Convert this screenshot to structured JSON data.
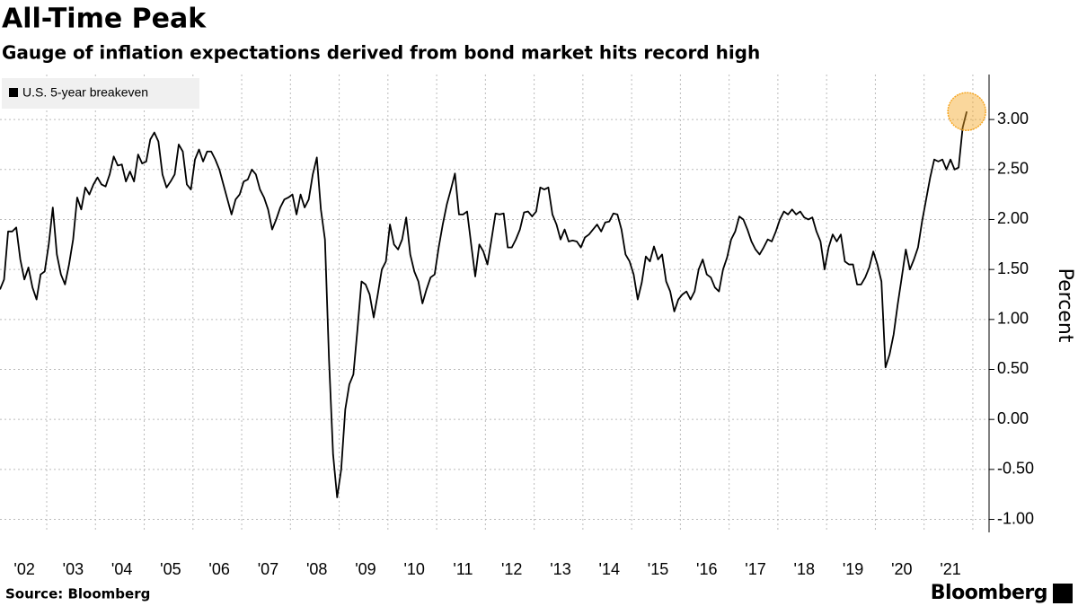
{
  "chart_data": {
    "type": "line",
    "title": "All-Time Peak",
    "subtitle": "Gauge of inflation expectations derived from bond market hits record high",
    "source": "Source: Bloomberg",
    "brand": "Bloomberg",
    "y_label": "Percent",
    "categories": [
      null,
      null,
      null,
      null,
      null,
      null,
      "'02",
      null,
      null,
      null,
      null,
      null,
      null,
      null,
      null,
      null,
      null,
      null,
      "'03",
      null,
      null,
      null,
      null,
      null,
      null,
      null,
      null,
      null,
      null,
      null,
      "'04",
      null,
      null,
      null,
      null,
      null,
      null,
      null,
      null,
      null,
      null,
      null,
      "'05",
      null,
      null,
      null,
      null,
      null,
      null,
      null,
      null,
      null,
      null,
      null,
      "'06",
      null,
      null,
      null,
      null,
      null,
      null,
      null,
      null,
      null,
      null,
      null,
      "'07",
      null,
      null,
      null,
      null,
      null,
      null,
      null,
      null,
      null,
      null,
      null,
      "'08",
      null,
      null,
      null,
      null,
      null,
      null,
      null,
      null,
      null,
      null,
      null,
      "'09",
      null,
      null,
      null,
      null,
      null,
      null,
      null,
      null,
      null,
      null,
      null,
      "'10",
      null,
      null,
      null,
      null,
      null,
      null,
      null,
      null,
      null,
      null,
      null,
      "'11",
      null,
      null,
      null,
      null,
      null,
      null,
      null,
      null,
      null,
      null,
      null,
      "'12",
      null,
      null,
      null,
      null,
      null,
      null,
      null,
      null,
      null,
      null,
      null,
      "'13",
      null,
      null,
      null,
      null,
      null,
      null,
      null,
      null,
      null,
      null,
      null,
      "'14",
      null,
      null,
      null,
      null,
      null,
      null,
      null,
      null,
      null,
      null,
      null,
      "'15",
      null,
      null,
      null,
      null,
      null,
      null,
      null,
      null,
      null,
      null,
      null,
      "'16",
      null,
      null,
      null,
      null,
      null,
      null,
      null,
      null,
      null,
      null,
      null,
      "'17",
      null,
      null,
      null,
      null,
      null,
      null,
      null,
      null,
      null,
      null,
      null,
      "'18",
      null,
      null,
      null,
      null,
      null,
      null,
      null,
      null,
      null,
      null,
      null,
      "'19",
      null,
      null,
      null,
      null,
      null,
      null,
      null,
      null,
      null,
      null,
      null,
      "'20",
      null,
      null,
      null,
      null,
      null,
      null,
      null,
      null,
      null,
      null,
      null,
      "'21",
      null,
      null,
      null,
      null
    ],
    "series": [
      {
        "name": "U.S. 5-year breakeven",
        "color": "#000000",
        "values": [
          1.3,
          1.4,
          1.88,
          1.88,
          1.92,
          1.6,
          1.4,
          1.52,
          1.32,
          1.2,
          1.45,
          1.48,
          1.75,
          2.12,
          1.65,
          1.45,
          1.35,
          1.55,
          1.8,
          2.22,
          2.1,
          2.32,
          2.25,
          2.35,
          2.42,
          2.35,
          2.33,
          2.45,
          2.63,
          2.54,
          2.55,
          2.38,
          2.48,
          2.38,
          2.65,
          2.56,
          2.58,
          2.8,
          2.87,
          2.78,
          2.45,
          2.32,
          2.38,
          2.45,
          2.75,
          2.68,
          2.35,
          2.3,
          2.6,
          2.7,
          2.58,
          2.68,
          2.68,
          2.6,
          2.5,
          2.35,
          2.2,
          2.05,
          2.2,
          2.25,
          2.38,
          2.4,
          2.5,
          2.45,
          2.3,
          2.22,
          2.1,
          1.9,
          2.0,
          2.12,
          2.2,
          2.22,
          2.25,
          2.05,
          2.25,
          2.12,
          2.2,
          2.45,
          2.62,
          2.1,
          1.8,
          0.6,
          -0.35,
          -0.78,
          -0.5,
          0.1,
          0.35,
          0.45,
          0.9,
          1.38,
          1.35,
          1.25,
          1.02,
          1.25,
          1.5,
          1.58,
          1.95,
          1.75,
          1.7,
          1.8,
          2.02,
          1.65,
          1.48,
          1.38,
          1.16,
          1.3,
          1.42,
          1.45,
          1.72,
          1.95,
          2.15,
          2.3,
          2.46,
          2.05,
          2.05,
          2.08,
          1.75,
          1.43,
          1.75,
          1.68,
          1.55,
          1.8,
          2.06,
          2.05,
          2.06,
          1.72,
          1.72,
          1.8,
          1.9,
          2.07,
          2.08,
          2.03,
          2.08,
          2.32,
          2.3,
          2.32,
          2.05,
          1.95,
          1.8,
          1.9,
          1.78,
          1.79,
          1.78,
          1.72,
          1.82,
          1.85,
          1.9,
          1.95,
          1.88,
          1.97,
          1.98,
          2.06,
          2.05,
          1.9,
          1.65,
          1.58,
          1.45,
          1.2,
          1.37,
          1.63,
          1.58,
          1.73,
          1.6,
          1.65,
          1.38,
          1.28,
          1.08,
          1.2,
          1.25,
          1.28,
          1.2,
          1.28,
          1.5,
          1.6,
          1.45,
          1.42,
          1.32,
          1.28,
          1.5,
          1.62,
          1.8,
          1.88,
          2.03,
          2.0,
          1.9,
          1.78,
          1.7,
          1.65,
          1.72,
          1.8,
          1.78,
          1.88,
          2.0,
          2.08,
          2.05,
          2.1,
          2.05,
          2.08,
          2.02,
          2.0,
          2.02,
          1.88,
          1.78,
          1.5,
          1.72,
          1.85,
          1.78,
          1.85,
          1.58,
          1.55,
          1.55,
          1.35,
          1.35,
          1.42,
          1.52,
          1.68,
          1.55,
          1.38,
          0.52,
          0.65,
          0.85,
          1.15,
          1.42,
          1.7,
          1.5,
          1.6,
          1.72,
          1.98,
          2.2,
          2.42,
          2.6,
          2.58,
          2.6,
          2.5,
          2.6,
          2.5,
          2.52,
          2.92,
          3.08
        ]
      }
    ],
    "highlight_color": "#f5a623",
    "ylim": [
      -1.13,
      3.45
    ],
    "yticks": [
      {
        "value": -1,
        "label": "-1.00"
      },
      {
        "value": -0.5,
        "label": "-0.50"
      },
      {
        "value": 0,
        "label": "0.00"
      },
      {
        "value": 0.5,
        "label": "0.50"
      },
      {
        "value": 1,
        "label": "1.00"
      },
      {
        "value": 1.5,
        "label": "1.50"
      },
      {
        "value": 2,
        "label": "2.00"
      },
      {
        "value": 2.5,
        "label": "2.50"
      },
      {
        "value": 3,
        "label": "3.00"
      }
    ],
    "grid": true
  }
}
